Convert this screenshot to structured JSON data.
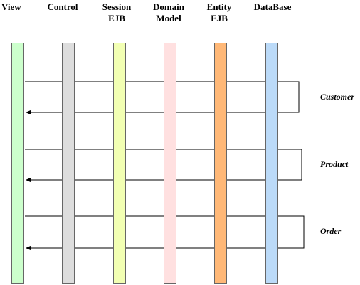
{
  "columns": [
    {
      "key": "view",
      "line1": "View",
      "line2": "",
      "color": "#ccffcc"
    },
    {
      "key": "control",
      "line1": "Control",
      "line2": "",
      "color": "#dddddd"
    },
    {
      "key": "session",
      "line1": "Session",
      "line2": "EJB",
      "color": "#f2ffb3"
    },
    {
      "key": "domain",
      "line1": "Domain",
      "line2": "Model",
      "color": "#ffe0e0"
    },
    {
      "key": "entity",
      "line1": "Entity",
      "line2": "EJB",
      "color": "#ffb877"
    },
    {
      "key": "database",
      "line1": "DataBase",
      "line2": "",
      "color": "#bbdaf8"
    }
  ],
  "flows": [
    {
      "label": "Customer"
    },
    {
      "label": "Product"
    },
    {
      "label": "Order"
    }
  ]
}
